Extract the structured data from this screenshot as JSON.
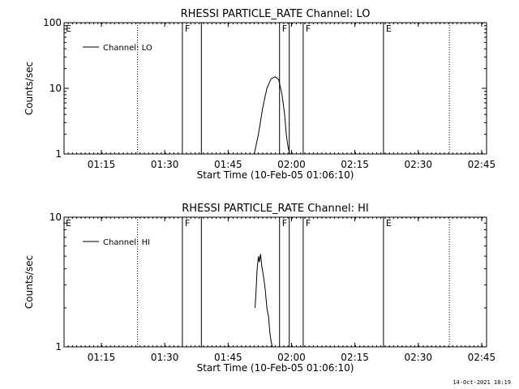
{
  "chart_data": [
    {
      "type": "line",
      "title": "RHESSI PARTICLE_RATE Channel: LO",
      "xlabel": "Start Time (10-Feb-05 01:06:10)",
      "ylabel": "Counts/sec",
      "yscale": "log",
      "ylim": [
        1,
        100
      ],
      "ytick_labels": [
        "1",
        "10",
        "100"
      ],
      "ytick_values": [
        1,
        10,
        100
      ],
      "x_unit": "minutes since 01:06:10",
      "xlim": [
        0,
        100
      ],
      "xtick_labels": [
        "01:15",
        "01:30",
        "01:45",
        "02:00",
        "02:15",
        "02:30",
        "02:45"
      ],
      "xtick_values": [
        8.83,
        23.83,
        38.83,
        53.83,
        68.83,
        83.83,
        98.83
      ],
      "legend": {
        "placement": "top-left",
        "entries": [
          "Channel: LO"
        ]
      },
      "series": [
        {
          "name": "Channel: LO",
          "x": [
            45.0,
            46.0,
            47.0,
            48.0,
            49.0,
            50.0,
            50.8,
            51.6,
            52.2,
            52.6,
            53.0,
            53.4
          ],
          "y": [
            1.0,
            2.0,
            5.0,
            10.0,
            14.0,
            15.0,
            13.5,
            8.0,
            4.0,
            2.0,
            1.3,
            1.0
          ]
        }
      ],
      "markers": [
        {
          "type": "dotted",
          "x": 17.4,
          "label": ""
        },
        {
          "type": "solid",
          "x": 28.0,
          "label": "F"
        },
        {
          "type": "solid",
          "x": 32.5,
          "label": ""
        },
        {
          "type": "solid",
          "x": 51.0,
          "label": "F"
        },
        {
          "type": "solid",
          "x": 53.3,
          "label": ""
        },
        {
          "type": "solid",
          "x": 56.6,
          "label": "F"
        },
        {
          "type": "solid",
          "x": 75.6,
          "label": "E"
        },
        {
          "type": "dotted",
          "x": 91.2,
          "label": ""
        }
      ],
      "edge_labels": [
        "E"
      ]
    },
    {
      "type": "line",
      "title": "RHESSI PARTICLE_RATE Channel: HI",
      "xlabel": "Start Time (10-Feb-05 01:06:10)",
      "ylabel": "Counts/sec",
      "yscale": "log",
      "ylim": [
        1,
        10
      ],
      "ytick_labels": [
        "1",
        "10"
      ],
      "ytick_values": [
        1,
        10
      ],
      "x_unit": "minutes since 01:06:10",
      "xlim": [
        0,
        100
      ],
      "xtick_labels": [
        "01:15",
        "01:30",
        "01:45",
        "02:00",
        "02:15",
        "02:30",
        "02:45"
      ],
      "xtick_values": [
        8.83,
        23.83,
        38.83,
        53.83,
        68.83,
        83.83,
        98.83
      ],
      "legend": {
        "placement": "top-left",
        "entries": [
          "Channel: HI"
        ]
      },
      "series": [
        {
          "name": "Channel: HI",
          "x": [
            45.2,
            45.4,
            45.7,
            46.0,
            46.2,
            46.5,
            46.8,
            47.2,
            47.6,
            48.0,
            48.4,
            48.7,
            49.0,
            49.3
          ],
          "y": [
            2.0,
            2.5,
            4.0,
            5.0,
            4.5,
            5.2,
            4.2,
            3.5,
            2.8,
            2.0,
            1.7,
            1.3,
            1.1,
            1.0
          ]
        }
      ],
      "markers": [
        {
          "type": "dotted",
          "x": 17.4,
          "label": ""
        },
        {
          "type": "solid",
          "x": 28.0,
          "label": "F"
        },
        {
          "type": "solid",
          "x": 32.5,
          "label": ""
        },
        {
          "type": "solid",
          "x": 51.0,
          "label": "F"
        },
        {
          "type": "solid",
          "x": 53.3,
          "label": ""
        },
        {
          "type": "solid",
          "x": 56.6,
          "label": "F"
        },
        {
          "type": "solid",
          "x": 75.6,
          "label": "E"
        },
        {
          "type": "dotted",
          "x": 91.2,
          "label": ""
        }
      ],
      "edge_labels": [
        "E"
      ]
    }
  ],
  "footer": {
    "timestamp": "14-Oct-2021 18:19"
  }
}
